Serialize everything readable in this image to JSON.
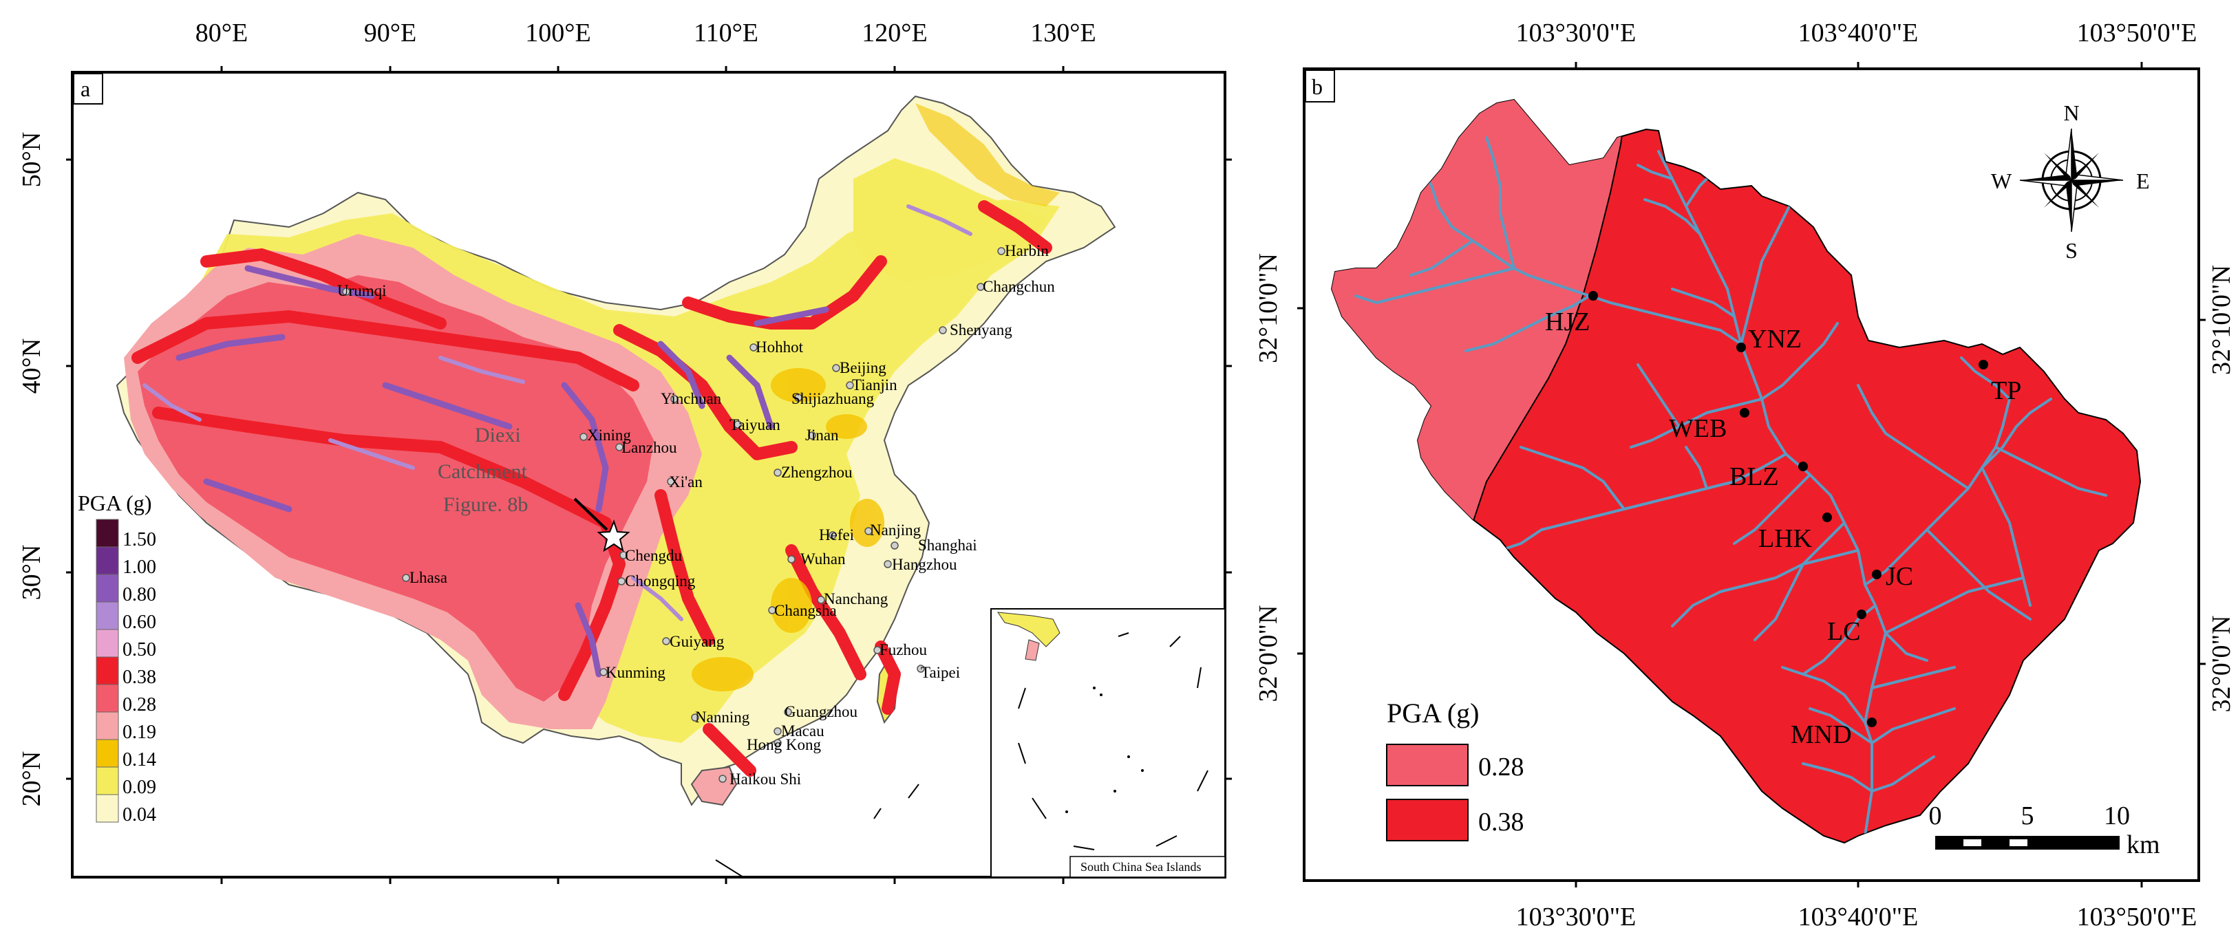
{
  "panel_a": {
    "label": "a",
    "top_ticks": [
      "80°E",
      "90°E",
      "100°E",
      "110°E",
      "120°E",
      "130°E"
    ],
    "left_ticks": [
      "50°N",
      "40°N",
      "30°N",
      "20°N"
    ],
    "legend": {
      "title": "PGA (g)",
      "classes": [
        {
          "value": "1.50",
          "color": "#4a0a2c"
        },
        {
          "value": "1.00",
          "color": "#6d2f8e"
        },
        {
          "value": "0.80",
          "color": "#8a58b8"
        },
        {
          "value": "0.60",
          "color": "#b08ad4"
        },
        {
          "value": "0.50",
          "color": "#e9a2cf"
        },
        {
          "value": "0.38",
          "color": "#ee1f2a"
        },
        {
          "value": "0.28",
          "color": "#f25b6b"
        },
        {
          "value": "0.19",
          "color": "#f6a6a8"
        },
        {
          "value": "0.14",
          "color": "#f5c400"
        },
        {
          "value": "0.09",
          "color": "#f4ec5c"
        },
        {
          "value": "0.04",
          "color": "#fbf7c8"
        }
      ]
    },
    "annotation": {
      "line1": "Diexi",
      "line2": "Catchment",
      "line3": "Figure. 8b"
    },
    "cities": [
      "Urumqi",
      "Harbin",
      "Changchun",
      "Shenyang",
      "Hohhot",
      "Beijing",
      "Tianjin",
      "Yinchuan",
      "Shijiazhuang",
      "Taiyuan",
      "Jinan",
      "Xining",
      "Lanzhou",
      "Zhengzhou",
      "Xi'an",
      "Nanjing",
      "Hefei",
      "Shanghai",
      "Chengdu",
      "Wuhan",
      "Hangzhou",
      "Chongqing",
      "Lhasa",
      "Nanchang",
      "Changsha",
      "Fuzhou",
      "Taipei",
      "Guiyang",
      "Kunming",
      "Nanning",
      "Guangzhou",
      "Macau",
      "Hong Kong",
      "Haikou Shi"
    ],
    "inset_caption": "South China Sea Islands"
  },
  "panel_b": {
    "label": "b",
    "top_ticks": [
      "103°30'0\"E",
      "103°40'0\"E",
      "103°50'0\"E"
    ],
    "bottom_ticks": [
      "103°30'0\"E",
      "103°40'0\"E",
      "103°50'0\"E"
    ],
    "left_ticks": [
      "32°10'0\"N",
      "32°0'0\"N"
    ],
    "right_ticks": [
      "32°10'0\"N",
      "32°0'0\"N"
    ],
    "stations": [
      "HJZ",
      "YNZ",
      "WEB",
      "BLZ",
      "TP",
      "LHK",
      "JC",
      "LC",
      "MND"
    ],
    "legend": {
      "title": "PGA (g)",
      "classes": [
        {
          "value": "0.28",
          "color": "#f25b6b"
        },
        {
          "value": "0.38",
          "color": "#ee1f2a"
        }
      ]
    },
    "compass": {
      "n": "N",
      "s": "S",
      "e": "E",
      "w": "W"
    },
    "scale": {
      "ticks": [
        "0",
        "5",
        "10"
      ],
      "unit": "km"
    }
  },
  "colors": {
    "river": "#5b9bc4",
    "zone_low": "#f25b6b",
    "zone_high": "#ee1f2a",
    "catchment_border": "#000000"
  }
}
